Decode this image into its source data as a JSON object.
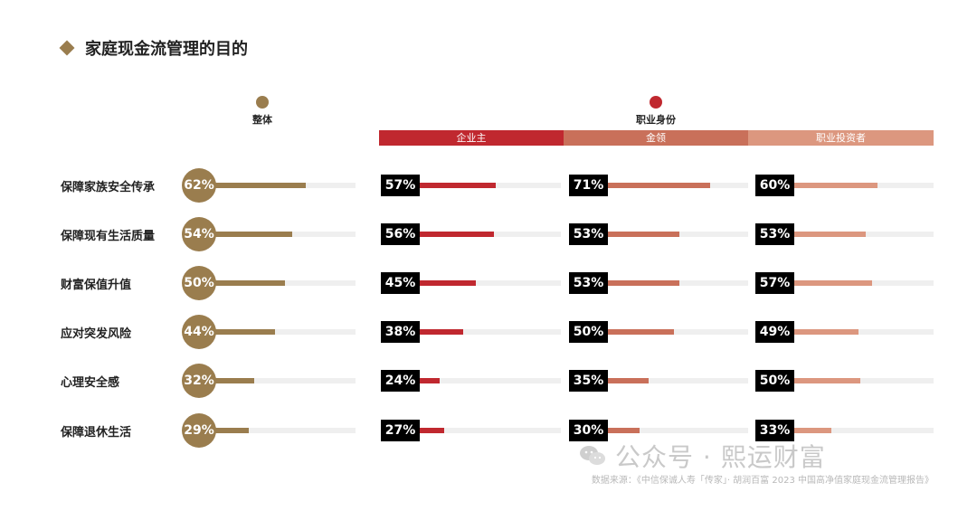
{
  "title": "家庭现金流管理的目的",
  "legend": {
    "overall": {
      "label": "整体",
      "color": "#9a7d4e"
    },
    "occupation": {
      "label": "职业身份",
      "color": "#c0282f"
    }
  },
  "chart_data": {
    "type": "bar",
    "categories": [
      "保障家族安全传承",
      "保障现有生活质量",
      "财富保值升值",
      "应对突发风险",
      "心理安全感",
      "保障退休生活"
    ],
    "series": [
      {
        "name": "整体",
        "color": "#9a7d4e",
        "values": [
          62,
          54,
          50,
          44,
          32,
          29
        ],
        "labels": [
          "62%",
          "54%",
          "50%",
          "44%",
          "32%",
          "29%"
        ]
      },
      {
        "name": "企业主",
        "color": "#c0282f",
        "values": [
          57,
          56,
          45,
          38,
          24,
          27
        ],
        "labels": [
          "57%",
          "56%",
          "45%",
          "38%",
          "24%",
          "27%"
        ]
      },
      {
        "name": "金领",
        "color": "#c9705a",
        "values": [
          71,
          53,
          53,
          50,
          35,
          30
        ],
        "labels": [
          "71%",
          "53%",
          "53%",
          "50%",
          "35%",
          "30%"
        ]
      },
      {
        "name": "职业投资者",
        "color": "#dc977f",
        "values": [
          60,
          53,
          57,
          49,
          50,
          33
        ],
        "labels": [
          "60%",
          "53%",
          "57%",
          "49%",
          "50%",
          "33%"
        ]
      }
    ],
    "xlim": [
      0,
      100
    ]
  },
  "watermark": "公众号 · 熙运财富",
  "source": "数据来源：《中信保诚人寿「传家」· 胡润百富 2023 中国高净值家庭现金流管理报告》"
}
